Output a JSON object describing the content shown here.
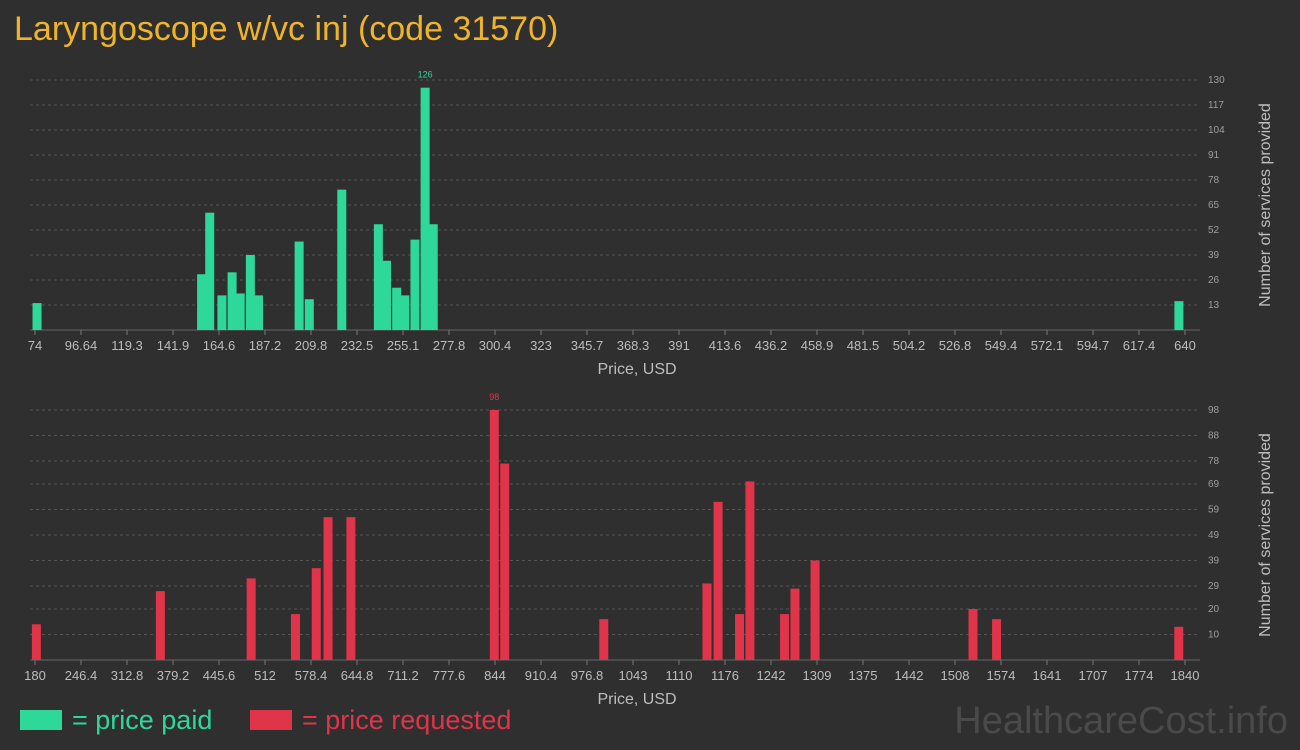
{
  "title": "Laryngoscope w/vc inj (code 31570)",
  "colors": {
    "paid": "#2ed89b",
    "requested": "#e0344a",
    "title": "#f0b429",
    "background": "#2f2f2f"
  },
  "legend": {
    "paid_label": "= price paid",
    "requested_label": "= price requested"
  },
  "watermark": "HealthcareCost.info",
  "chart_data": [
    {
      "type": "bar",
      "xlabel": "Price, USD",
      "ylabel": "Number of services provided",
      "x_ticks": [
        "74",
        "96.64",
        "119.3",
        "141.9",
        "164.6",
        "187.2",
        "209.8",
        "232.5",
        "255.1",
        "277.8",
        "300.4",
        "323",
        "345.7",
        "368.3",
        "391",
        "413.6",
        "436.2",
        "458.9",
        "481.5",
        "504.2",
        "526.8",
        "549.4",
        "572.1",
        "594.7",
        "617.4",
        "640"
      ],
      "xlim": [
        74,
        640
      ],
      "y_ticks": [
        13,
        26,
        39,
        52,
        65,
        78,
        91,
        104,
        117,
        130
      ],
      "ylim": [
        0,
        130
      ],
      "max_label": "126",
      "series": [
        {
          "name": "price paid",
          "bars": [
            {
              "x": 75,
              "y": 14
            },
            {
              "x": 156,
              "y": 29
            },
            {
              "x": 160,
              "y": 61
            },
            {
              "x": 166,
              "y": 18
            },
            {
              "x": 171,
              "y": 30
            },
            {
              "x": 175,
              "y": 19
            },
            {
              "x": 180,
              "y": 39
            },
            {
              "x": 184,
              "y": 18
            },
            {
              "x": 204,
              "y": 46
            },
            {
              "x": 209,
              "y": 16
            },
            {
              "x": 225,
              "y": 73
            },
            {
              "x": 243,
              "y": 55
            },
            {
              "x": 247,
              "y": 36
            },
            {
              "x": 252,
              "y": 22
            },
            {
              "x": 256,
              "y": 18
            },
            {
              "x": 261,
              "y": 47
            },
            {
              "x": 266,
              "y": 126
            },
            {
              "x": 270,
              "y": 55
            },
            {
              "x": 637,
              "y": 15
            }
          ]
        }
      ]
    },
    {
      "type": "bar",
      "xlabel": "Price, USD",
      "ylabel": "Number of services provided",
      "x_ticks": [
        "180",
        "246.4",
        "312.8",
        "379.2",
        "445.6",
        "512",
        "578.4",
        "644.8",
        "711.2",
        "777.6",
        "844",
        "910.4",
        "976.8",
        "1043",
        "1110",
        "1176",
        "1242",
        "1309",
        "1375",
        "1442",
        "1508",
        "1574",
        "1641",
        "1707",
        "1774",
        "1840"
      ],
      "xlim": [
        180,
        1840
      ],
      "y_ticks": [
        10,
        20,
        29,
        39,
        49,
        59,
        69,
        78,
        88,
        98
      ],
      "ylim": [
        0,
        98
      ],
      "max_label": "98",
      "series": [
        {
          "name": "price requested",
          "bars": [
            {
              "x": 182,
              "y": 14
            },
            {
              "x": 361,
              "y": 27
            },
            {
              "x": 492,
              "y": 32
            },
            {
              "x": 556,
              "y": 18
            },
            {
              "x": 586,
              "y": 36
            },
            {
              "x": 603,
              "y": 56
            },
            {
              "x": 636,
              "y": 56
            },
            {
              "x": 843,
              "y": 98
            },
            {
              "x": 858,
              "y": 77
            },
            {
              "x": 1001,
              "y": 16
            },
            {
              "x": 1150,
              "y": 30
            },
            {
              "x": 1166,
              "y": 62
            },
            {
              "x": 1197,
              "y": 18
            },
            {
              "x": 1212,
              "y": 70
            },
            {
              "x": 1262,
              "y": 18
            },
            {
              "x": 1277,
              "y": 28
            },
            {
              "x": 1306,
              "y": 39
            },
            {
              "x": 1534,
              "y": 20
            },
            {
              "x": 1568,
              "y": 16
            },
            {
              "x": 1831,
              "y": 13
            }
          ]
        }
      ]
    }
  ]
}
